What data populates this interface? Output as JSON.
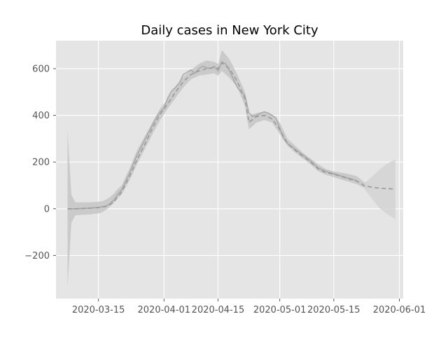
{
  "chart_data": {
    "type": "line",
    "title": "Daily cases in New York City",
    "xlabel": "",
    "ylabel": "",
    "x_axis_type": "date",
    "xlim": [
      "2020-03-04",
      "2020-06-02"
    ],
    "ylim": [
      -385,
      720
    ],
    "x_ticks": [
      "2020-03-15",
      "2020-04-01",
      "2020-04-15",
      "2020-05-01",
      "2020-05-15",
      "2020-06-01"
    ],
    "y_ticks": [
      -200,
      0,
      200,
      400,
      600
    ],
    "y_tick_labels": [
      "−200",
      "0",
      "200",
      "400",
      "600"
    ],
    "grid": true,
    "background": "#e5e5e5",
    "colors": {
      "observed": "#aaaaaa",
      "fitted": "#999999",
      "band_inner": "#c6c6c6",
      "band_outer": "#d4d4d4"
    },
    "series": [
      {
        "style": "solid",
        "x": [
          "2020-03-07",
          "2020-03-09",
          "2020-03-11",
          "2020-03-13",
          "2020-03-15",
          "2020-03-17",
          "2020-03-18",
          "2020-03-19",
          "2020-03-20",
          "2020-03-21",
          "2020-03-23",
          "2020-03-25",
          "2020-03-27",
          "2020-03-29",
          "2020-03-30",
          "2020-03-31",
          "2020-04-01",
          "2020-04-02",
          "2020-04-03",
          "2020-04-04",
          "2020-04-05",
          "2020-04-06",
          "2020-04-07",
          "2020-04-08",
          "2020-04-09",
          "2020-04-10",
          "2020-04-11",
          "2020-04-12",
          "2020-04-13",
          "2020-04-14",
          "2020-04-15",
          "2020-04-16",
          "2020-04-17",
          "2020-04-18",
          "2020-04-19",
          "2020-04-20",
          "2020-04-21",
          "2020-04-22",
          "2020-04-23",
          "2020-04-24",
          "2020-04-25",
          "2020-04-26",
          "2020-04-27",
          "2020-04-28",
          "2020-04-29",
          "2020-04-30",
          "2020-05-01",
          "2020-05-02",
          "2020-05-03",
          "2020-05-05",
          "2020-05-07",
          "2020-05-09",
          "2020-05-11",
          "2020-05-13",
          "2020-05-15",
          "2020-05-17",
          "2020-05-19",
          "2020-05-21"
        ],
        "values": [
          0,
          0,
          1,
          3,
          6,
          12,
          22,
          38,
          62,
          80,
          150,
          230,
          295,
          360,
          390,
          415,
          430,
          475,
          505,
          520,
          540,
          575,
          585,
          595,
          580,
          600,
          610,
          605,
          600,
          610,
          590,
          630,
          620,
          590,
          555,
          520,
          500,
          485,
          410,
          395,
          400,
          410,
          415,
          410,
          400,
          390,
          345,
          300,
          280,
          255,
          230,
          205,
          175,
          160,
          150,
          140,
          130,
          120
        ]
      },
      {
        "style": "dashed",
        "x": [
          "2020-03-07",
          "2020-03-09",
          "2020-03-11",
          "2020-03-13",
          "2020-03-15",
          "2020-03-17",
          "2020-03-18",
          "2020-03-19",
          "2020-03-20",
          "2020-03-21",
          "2020-03-23",
          "2020-03-25",
          "2020-03-27",
          "2020-03-29",
          "2020-03-31",
          "2020-04-02",
          "2020-04-04",
          "2020-04-06",
          "2020-04-08",
          "2020-04-10",
          "2020-04-12",
          "2020-04-14",
          "2020-04-15",
          "2020-04-16",
          "2020-04-18",
          "2020-04-20",
          "2020-04-22",
          "2020-04-23",
          "2020-04-25",
          "2020-04-27",
          "2020-04-29",
          "2020-05-01",
          "2020-05-03",
          "2020-05-05",
          "2020-05-07",
          "2020-05-09",
          "2020-05-11",
          "2020-05-13",
          "2020-05-15",
          "2020-05-17",
          "2020-05-19",
          "2020-05-21",
          "2020-05-23",
          "2020-05-25",
          "2020-05-27",
          "2020-05-29",
          "2020-05-31"
        ],
        "values": [
          0,
          0,
          1,
          3,
          5,
          10,
          18,
          30,
          50,
          72,
          135,
          210,
          275,
          345,
          405,
          450,
          500,
          545,
          575,
          590,
          600,
          605,
          600,
          625,
          600,
          545,
          470,
          370,
          395,
          400,
          385,
          340,
          280,
          250,
          225,
          200,
          170,
          155,
          148,
          138,
          128,
          118,
          98,
          92,
          88,
          86,
          84
        ]
      }
    ],
    "bands": [
      {
        "x": [
          "2020-03-07",
          "2020-03-08",
          "2020-03-09",
          "2020-03-11",
          "2020-03-13",
          "2020-03-15",
          "2020-03-16",
          "2020-03-17",
          "2020-03-18",
          "2020-03-19",
          "2020-03-20",
          "2020-03-21",
          "2020-03-23",
          "2020-03-25",
          "2020-03-27",
          "2020-03-29",
          "2020-03-31",
          "2020-04-02",
          "2020-04-04",
          "2020-04-06",
          "2020-04-08",
          "2020-04-10",
          "2020-04-12",
          "2020-04-14",
          "2020-04-15",
          "2020-04-16",
          "2020-04-18",
          "2020-04-20",
          "2020-04-22",
          "2020-04-23",
          "2020-04-25",
          "2020-04-27",
          "2020-04-29",
          "2020-05-01",
          "2020-05-03",
          "2020-05-05",
          "2020-05-07",
          "2020-05-09",
          "2020-05-11",
          "2020-05-13",
          "2020-05-15",
          "2020-05-17",
          "2020-05-19",
          "2020-05-21",
          "2020-05-23",
          "2020-05-24"
        ],
        "upper": [
          335,
          60,
          28,
          28,
          28,
          30,
          32,
          40,
          50,
          65,
          85,
          100,
          170,
          250,
          310,
          370,
          430,
          470,
          525,
          565,
          595,
          620,
          635,
          630,
          620,
          680,
          640,
          575,
          500,
          400,
          410,
          415,
          405,
          370,
          300,
          270,
          240,
          215,
          190,
          170,
          160,
          155,
          148,
          140,
          112,
          110
        ],
        "lower": [
          -335,
          -60,
          -28,
          -26,
          -24,
          -20,
          -15,
          -5,
          10,
          25,
          45,
          60,
          120,
          190,
          255,
          320,
          380,
          430,
          475,
          520,
          555,
          570,
          575,
          580,
          570,
          590,
          560,
          520,
          440,
          340,
          370,
          380,
          370,
          320,
          270,
          240,
          215,
          190,
          160,
          145,
          135,
          125,
          115,
          105,
          88,
          85
        ]
      },
      {
        "x": [
          "2020-05-23",
          "2020-05-25",
          "2020-05-27",
          "2020-05-29",
          "2020-05-31"
        ],
        "upper": [
          110,
          140,
          170,
          195,
          210
        ],
        "lower": [
          85,
          40,
          0,
          -25,
          -45
        ]
      }
    ]
  }
}
